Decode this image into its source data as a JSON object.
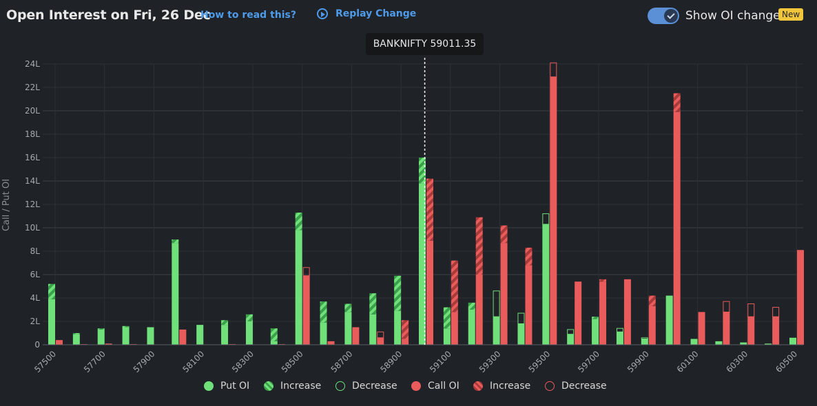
{
  "header": {
    "title": "Open Interest on Fri, 26 Dec",
    "how_to_read": "How to read this?",
    "replay_label": "Replay Change",
    "toggle_label": "Show OI change",
    "toggle_on": true,
    "new_badge": "New"
  },
  "spot": {
    "label": "BANKNIFTY 59011.35",
    "value": 59011.35
  },
  "legend": [
    {
      "label": "Put OI",
      "kind": "put-solid"
    },
    {
      "label": "Increase",
      "kind": "put-increase"
    },
    {
      "label": "Decrease",
      "kind": "put-decrease"
    },
    {
      "label": "Call OI",
      "kind": "call-solid"
    },
    {
      "label": "Increase",
      "kind": "call-increase"
    },
    {
      "label": "Decrease",
      "kind": "call-decrease"
    }
  ],
  "colors": {
    "put": "#6fe07a",
    "call": "#ea5b5b",
    "background": "#1f2226",
    "grid": "#353a3f",
    "link": "#4e9bea"
  },
  "chart_data": {
    "type": "bar",
    "ylabel": "Call / Put OI",
    "unit": "L",
    "ylim": [
      0,
      24
    ],
    "yticks": [
      "0",
      "2L",
      "4L",
      "6L",
      "8L",
      "10L",
      "12L",
      "14L",
      "16L",
      "18L",
      "20L",
      "22L",
      "24L"
    ],
    "xtick_labels": [
      "57500",
      "57700",
      "57900",
      "58100",
      "58300",
      "58500",
      "58700",
      "58900",
      "59100",
      "59300",
      "59500",
      "59700",
      "59900",
      "60100",
      "60300",
      "60500"
    ],
    "strikes": [
      57500,
      57600,
      57700,
      57800,
      57900,
      58000,
      58100,
      58200,
      58300,
      58400,
      58500,
      58600,
      58700,
      58800,
      58900,
      59000,
      59100,
      59200,
      59300,
      59400,
      59500,
      59600,
      59700,
      59800,
      59900,
      60000,
      60100,
      60200,
      60300,
      60400,
      60500
    ],
    "series": [
      {
        "name": "Put OI",
        "values": [
          5.2,
          1.0,
          1.4,
          1.6,
          1.5,
          9.0,
          1.7,
          2.1,
          2.6,
          1.4,
          11.3,
          3.7,
          3.5,
          4.4,
          5.9,
          16.0,
          3.2,
          3.6,
          2.4,
          1.8,
          10.3,
          0.9,
          2.4,
          1.1,
          0.5,
          4.2,
          0.5,
          0.3,
          0.2,
          0.1,
          0.6
        ],
        "change": [
          1.3,
          0.1,
          0.1,
          0.1,
          0,
          0.3,
          0,
          0.4,
          0.6,
          1.1,
          1.5,
          1.8,
          0.7,
          1.8,
          3.0,
          2.2,
          1.8,
          0.6,
          -2.2,
          -0.9,
          -0.9,
          -0.4,
          0.2,
          -0.3,
          -0.1,
          0,
          0,
          0,
          0,
          0,
          0
        ]
      },
      {
        "name": "Call OI",
        "values": [
          0.4,
          0.05,
          0.1,
          0.05,
          0,
          1.3,
          0,
          0.05,
          0,
          0.05,
          5.9,
          0.3,
          1.5,
          0.6,
          2.1,
          14.2,
          7.2,
          10.9,
          10.2,
          8.3,
          22.9,
          5.4,
          5.6,
          5.6,
          4.2,
          21.5,
          2.8,
          2.8,
          2.4,
          2.4,
          8.1
        ],
        "change": [
          0,
          0,
          0,
          0,
          0,
          0,
          0,
          0,
          0,
          0,
          -0.7,
          0,
          0,
          -0.5,
          1.6,
          5.3,
          4.4,
          4.9,
          1.5,
          1.5,
          -1.2,
          0,
          0.2,
          0,
          0.9,
          1.6,
          0,
          -0.9,
          -1.1,
          -0.8,
          0
        ]
      }
    ]
  }
}
